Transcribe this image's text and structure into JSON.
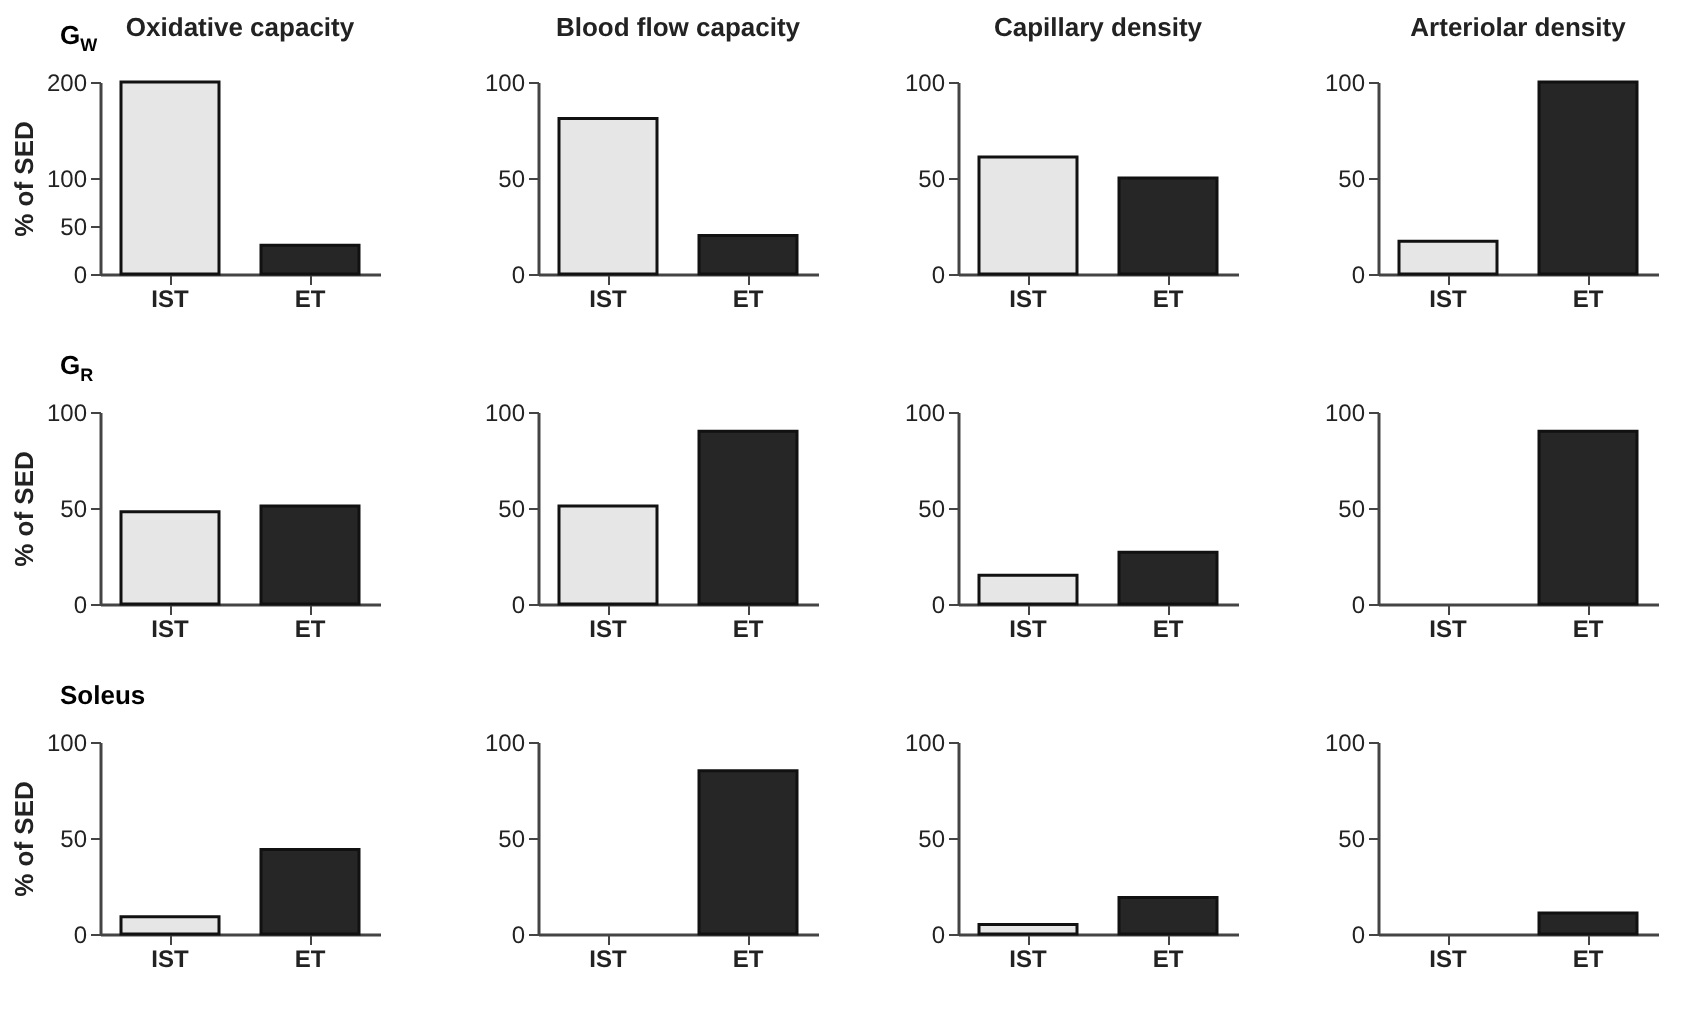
{
  "chart_data": [
    {
      "type": "bar",
      "title": "Oxidative capacity",
      "ylabel": "% of SED",
      "annotations": [
        "G$_{W}$"
      ],
      "categories": [
        "IST",
        "ET"
      ],
      "values": [
        200,
        30
      ],
      "colors": [
        "#e6e6e6",
        "#262626"
      ],
      "ylim": [
        0,
        200
      ],
      "yticks": [
        0,
        50,
        100,
        200
      ]
    },
    {
      "type": "bar",
      "title": "Blood flow capacity",
      "categories": [
        "IST",
        "ET"
      ],
      "values": [
        81,
        20
      ],
      "colors": [
        "#e6e6e6",
        "#262626"
      ],
      "ylim": [
        0,
        100
      ],
      "yticks": [
        0,
        50,
        100
      ]
    },
    {
      "type": "bar",
      "title": "Capillary density",
      "categories": [
        "IST",
        "ET"
      ],
      "values": [
        61,
        50
      ],
      "colors": [
        "#e6e6e6",
        "#262626"
      ],
      "ylim": [
        0,
        100
      ],
      "yticks": [
        0,
        50,
        100
      ]
    },
    {
      "type": "bar",
      "title": "Arteriolar density",
      "categories": [
        "IST",
        "ET"
      ],
      "values": [
        17,
        100
      ],
      "colors": [
        "#e6e6e6",
        "#262626"
      ],
      "ylim": [
        0,
        100
      ],
      "yticks": [
        0,
        50,
        100
      ]
    },
    {
      "type": "bar",
      "ylabel": "% of SED",
      "annotations": [
        "G$_{R}$"
      ],
      "categories": [
        "IST",
        "ET"
      ],
      "values": [
        48,
        51
      ],
      "colors": [
        "#e6e6e6",
        "#262626"
      ],
      "ylim": [
        0,
        100
      ],
      "yticks": [
        0,
        50,
        100
      ]
    },
    {
      "type": "bar",
      "categories": [
        "IST",
        "ET"
      ],
      "values": [
        51,
        90
      ],
      "colors": [
        "#e6e6e6",
        "#262626"
      ],
      "ylim": [
        0,
        100
      ],
      "yticks": [
        0,
        50,
        100
      ]
    },
    {
      "type": "bar",
      "categories": [
        "IST",
        "ET"
      ],
      "values": [
        15,
        27
      ],
      "colors": [
        "#e6e6e6",
        "#262626"
      ],
      "ylim": [
        0,
        100
      ],
      "yticks": [
        0,
        50,
        100
      ]
    },
    {
      "type": "bar",
      "categories": [
        "IST",
        "ET"
      ],
      "values": [
        0,
        90
      ],
      "colors": [
        "#e6e6e6",
        "#262626"
      ],
      "ylim": [
        0,
        100
      ],
      "yticks": [
        0,
        50,
        100
      ]
    },
    {
      "type": "bar",
      "ylabel": "% of SED",
      "annotations": [
        "Soleus"
      ],
      "categories": [
        "IST",
        "ET"
      ],
      "values": [
        9,
        44
      ],
      "colors": [
        "#e6e6e6",
        "#262626"
      ],
      "ylim": [
        0,
        100
      ],
      "yticks": [
        0,
        50,
        100
      ]
    },
    {
      "type": "bar",
      "categories": [
        "IST",
        "ET"
      ],
      "values": [
        0,
        85
      ],
      "colors": [
        "#e6e6e6",
        "#262626"
      ],
      "ylim": [
        0,
        100
      ],
      "yticks": [
        0,
        50,
        100
      ]
    },
    {
      "type": "bar",
      "categories": [
        "IST",
        "ET"
      ],
      "values": [
        5,
        19
      ],
      "colors": [
        "#e6e6e6",
        "#262626"
      ],
      "ylim": [
        0,
        100
      ],
      "yticks": [
        0,
        50,
        100
      ]
    },
    {
      "type": "bar",
      "categories": [
        "IST",
        "ET"
      ],
      "values": [
        0,
        11
      ],
      "colors": [
        "#e6e6e6",
        "#262626"
      ],
      "ylim": [
        0,
        100
      ],
      "yticks": [
        0,
        50,
        100
      ]
    }
  ]
}
